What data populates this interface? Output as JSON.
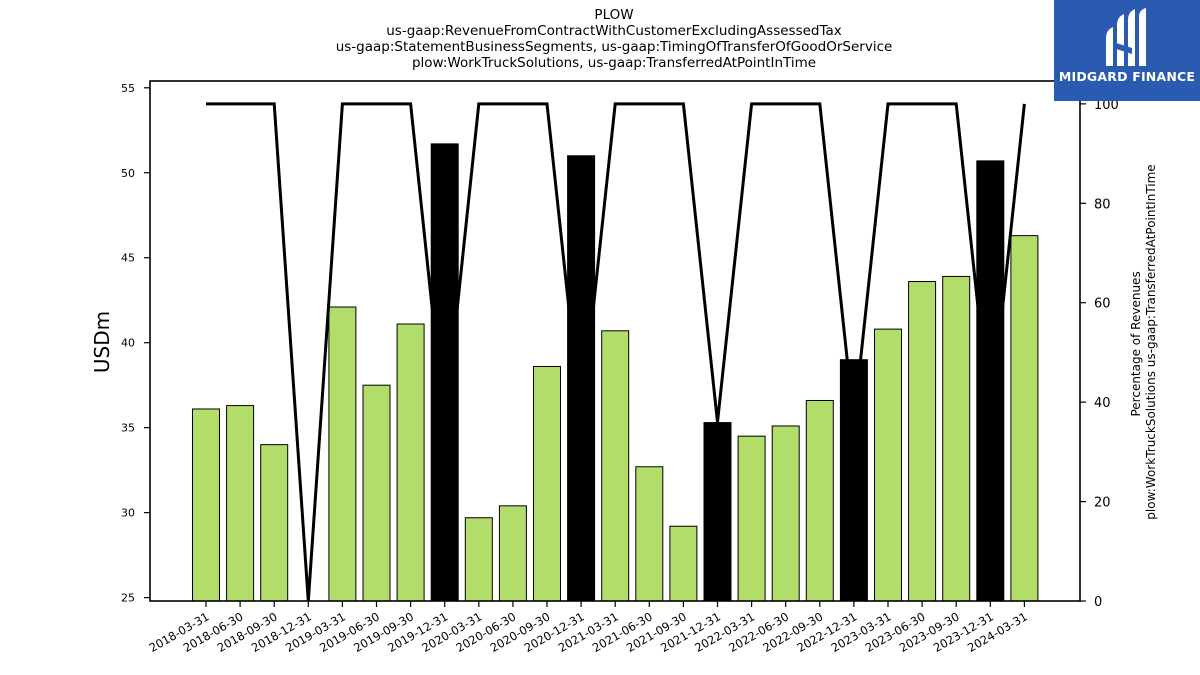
{
  "chart_data": {
    "type": "bar",
    "title_lines": [
      "PLOW",
      "us-gaap:RevenueFromContractWithCustomerExcludingAssessedTax",
      "us-gaap:StatementBusinessSegments, us-gaap:TimingOfTransferOfGoodOrService",
      "plow:WorkTruckSolutions, us-gaap:TransferredAtPointInTime"
    ],
    "ylabel": "USDm",
    "y2label_lines": [
      "Percentage of Revenues",
      "plow:WorkTruckSolutions us-gaap:TransferredAtPointInTime"
    ],
    "ylim": [
      24.8,
      55.4
    ],
    "yticks": [
      25,
      30,
      35,
      40,
      45,
      50,
      55
    ],
    "y2lim": [
      0,
      104.6
    ],
    "y2ticks": [
      0,
      20,
      40,
      60,
      80,
      100
    ],
    "categories": [
      "2018-03-31",
      "2018-06-30",
      "2018-09-30",
      "2018-12-31",
      "2019-03-31",
      "2019-06-30",
      "2019-09-30",
      "2019-12-31",
      "2020-03-31",
      "2020-06-30",
      "2020-09-30",
      "2020-12-31",
      "2021-03-31",
      "2021-06-30",
      "2021-09-30",
      "2021-12-31",
      "2022-03-31",
      "2022-06-30",
      "2022-09-30",
      "2022-12-31",
      "2023-03-31",
      "2023-06-30",
      "2023-09-30",
      "2023-12-31",
      "2024-03-31"
    ],
    "values": [
      36.1,
      36.3,
      34.0,
      null,
      42.1,
      37.5,
      41.1,
      51.7,
      29.7,
      30.4,
      38.6,
      51.0,
      40.7,
      32.7,
      29.2,
      35.3,
      34.5,
      35.1,
      36.6,
      39.0,
      40.8,
      43.6,
      43.9,
      50.7,
      46.3
    ],
    "bar_colors": [
      "#b3dd6b",
      "#b3dd6b",
      "#b3dd6b",
      "#b3dd6b",
      "#b3dd6b",
      "#b3dd6b",
      "#b3dd6b",
      "#000000",
      "#b3dd6b",
      "#b3dd6b",
      "#b3dd6b",
      "#000000",
      "#b3dd6b",
      "#b3dd6b",
      "#b3dd6b",
      "#000000",
      "#b3dd6b",
      "#b3dd6b",
      "#b3dd6b",
      "#000000",
      "#b3dd6b",
      "#b3dd6b",
      "#b3dd6b",
      "#000000",
      "#b3dd6b"
    ],
    "percentage_line": [
      100,
      100,
      100,
      0,
      100,
      100,
      100,
      35,
      100,
      100,
      100,
      36,
      100,
      100,
      100,
      36,
      100,
      100,
      100,
      36,
      100,
      100,
      100,
      36,
      100
    ],
    "line_color": "#000000",
    "grid": false,
    "legend": "none"
  },
  "logo": {
    "text": "MIDGARD FINANCE",
    "background": "#2b5bb0"
  }
}
